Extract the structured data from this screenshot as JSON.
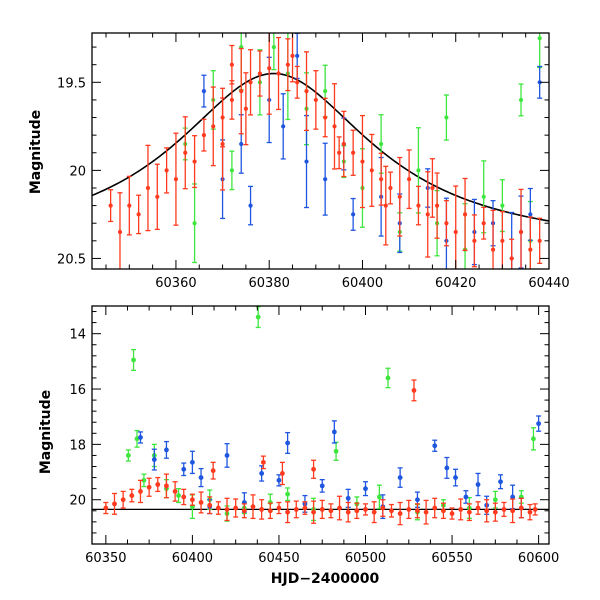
{
  "figure": {
    "x_axis_label": "HJD−2400000"
  },
  "colors": {
    "green": "#3ee63e",
    "blue": "#1f56e0",
    "red": "#ff3a1e",
    "model": "#000000"
  },
  "chart_data": [
    {
      "type": "scatter",
      "title": "",
      "xlabel": "",
      "ylabel": "Magnitude",
      "xlim": [
        60342,
        60440
      ],
      "ylim": [
        20.56,
        19.22
      ],
      "y_inverted": true,
      "x_ticks": [
        60360,
        60380,
        60400,
        60420,
        60440
      ],
      "y_ticks": [
        19.5,
        20,
        20.5
      ],
      "legend": "none",
      "grid": false,
      "model_curve": {
        "type": "lorentzian",
        "peak_x": 60381,
        "peak_mag": 19.45,
        "baseline_mag": 20.45,
        "width_days": 26
      },
      "series": [
        {
          "color": "red",
          "points": [
            [
              60346,
              20.2
            ],
            [
              60348,
              20.35
            ],
            [
              60350,
              20.2
            ],
            [
              60352,
              20.25
            ],
            [
              60354,
              20.1
            ],
            [
              60356,
              20.15
            ],
            [
              60358,
              20.0
            ],
            [
              60360,
              20.05
            ],
            [
              60362,
              19.9
            ],
            [
              60364,
              19.95
            ],
            [
              60366,
              19.8
            ],
            [
              60368,
              19.75
            ],
            [
              60370,
              19.7
            ],
            [
              60372,
              19.6
            ],
            [
              60374,
              19.55
            ],
            [
              60376,
              19.5
            ],
            [
              60378,
              19.45
            ],
            [
              60380,
              19.42
            ],
            [
              60382,
              19.45
            ],
            [
              60384,
              19.4
            ],
            [
              60386,
              19.5
            ],
            [
              60388,
              19.55
            ],
            [
              60390,
              19.6
            ],
            [
              60392,
              19.7
            ],
            [
              60394,
              19.75
            ],
            [
              60396,
              19.85
            ],
            [
              60398,
              19.9
            ],
            [
              60400,
              19.95
            ],
            [
              60402,
              20.0
            ],
            [
              60404,
              20.05
            ],
            [
              60406,
              20.1
            ],
            [
              60408,
              20.15
            ],
            [
              60410,
              20.05
            ],
            [
              60412,
              20.2
            ],
            [
              60414,
              20.25
            ],
            [
              60416,
              20.2
            ],
            [
              60418,
              20.3
            ],
            [
              60420,
              20.35
            ],
            [
              60422,
              20.25
            ],
            [
              60424,
              20.4
            ],
            [
              60426,
              20.3
            ],
            [
              60428,
              20.45
            ],
            [
              60430,
              20.4
            ],
            [
              60432,
              20.5
            ],
            [
              60434,
              20.35
            ],
            [
              60436,
              20.45
            ],
            [
              60438,
              20.4
            ],
            [
              60370,
              19.85
            ],
            [
              60375,
              19.65
            ],
            [
              60385,
              19.35
            ],
            [
              60395,
              19.9
            ],
            [
              60405,
              20.2
            ],
            [
              60415,
              20.1
            ],
            [
              60372,
              19.4
            ]
          ]
        },
        {
          "color": "green",
          "points": [
            [
              60362,
              19.85
            ],
            [
              60364,
              20.3
            ],
            [
              60368,
              19.6
            ],
            [
              60372,
              20.0
            ],
            [
              60374,
              19.3
            ],
            [
              60378,
              19.5
            ],
            [
              60381,
              19.3
            ],
            [
              60384,
              19.45
            ],
            [
              60388,
              19.65
            ],
            [
              60392,
              19.55
            ],
            [
              60396,
              19.95
            ],
            [
              60400,
              20.1
            ],
            [
              60404,
              19.85
            ],
            [
              60408,
              20.35
            ],
            [
              60412,
              20.0
            ],
            [
              60416,
              20.3
            ],
            [
              60418,
              19.7
            ],
            [
              60422,
              20.45
            ],
            [
              60426,
              20.15
            ],
            [
              60430,
              20.2
            ],
            [
              60434,
              19.6
            ],
            [
              60436,
              20.4
            ],
            [
              60438,
              19.25
            ]
          ]
        },
        {
          "color": "blue",
          "points": [
            [
              60366,
              19.55
            ],
            [
              60370,
              20.05
            ],
            [
              60374,
              19.85
            ],
            [
              60376,
              20.2
            ],
            [
              60380,
              19.6
            ],
            [
              60383,
              19.75
            ],
            [
              60386,
              19.35
            ],
            [
              60388,
              19.95
            ],
            [
              60392,
              20.05
            ],
            [
              60396,
              19.85
            ],
            [
              60398,
              20.25
            ],
            [
              60404,
              20.15
            ],
            [
              60408,
              20.3
            ],
            [
              60414,
              20.1
            ],
            [
              60418,
              20.4
            ],
            [
              60424,
              20.35
            ],
            [
              60428,
              20.3
            ],
            [
              60432,
              20.5
            ],
            [
              60434,
              20.35
            ],
            [
              60436,
              20.25
            ],
            [
              60438,
              19.5
            ]
          ]
        }
      ]
    },
    {
      "type": "scatter",
      "title": "",
      "xlabel": "HJD−2400000",
      "ylabel": "Magnitude",
      "xlim": [
        60342,
        60606
      ],
      "ylim": [
        21.6,
        13.0
      ],
      "y_inverted": true,
      "x_ticks": [
        60350,
        60400,
        60450,
        60500,
        60550,
        60600
      ],
      "y_ticks": [
        14,
        16,
        18,
        20
      ],
      "legend": "none",
      "grid": false,
      "baseline_mag": 20.35,
      "series": [
        {
          "color": "red",
          "points": [
            [
              60350,
              20.3
            ],
            [
              60355,
              20.15
            ],
            [
              60360,
              20.0
            ],
            [
              60365,
              19.85
            ],
            [
              60370,
              19.7
            ],
            [
              60375,
              19.55
            ],
            [
              60380,
              19.45
            ],
            [
              60385,
              19.5
            ],
            [
              60390,
              19.7
            ],
            [
              60395,
              19.9
            ],
            [
              60400,
              20.0
            ],
            [
              60405,
              20.1
            ],
            [
              60410,
              20.2
            ],
            [
              60415,
              20.3
            ],
            [
              60420,
              20.35
            ],
            [
              60425,
              20.3
            ],
            [
              60430,
              20.4
            ],
            [
              60435,
              20.25
            ],
            [
              60440,
              20.35
            ],
            [
              60445,
              20.4
            ],
            [
              60450,
              20.3
            ],
            [
              60455,
              20.45
            ],
            [
              60460,
              20.35
            ],
            [
              60465,
              20.3
            ],
            [
              60470,
              20.45
            ],
            [
              60475,
              20.35
            ],
            [
              60480,
              20.4
            ],
            [
              60485,
              20.3
            ],
            [
              60490,
              20.45
            ],
            [
              60495,
              20.4
            ],
            [
              60500,
              20.35
            ],
            [
              60505,
              20.45
            ],
            [
              60510,
              20.3
            ],
            [
              60515,
              20.4
            ],
            [
              60520,
              20.5
            ],
            [
              60525,
              20.35
            ],
            [
              60530,
              20.4
            ],
            [
              60535,
              20.45
            ],
            [
              60540,
              20.3
            ],
            [
              60545,
              20.4
            ],
            [
              60550,
              20.5
            ],
            [
              60555,
              20.35
            ],
            [
              60560,
              20.45
            ],
            [
              60565,
              20.3
            ],
            [
              60570,
              20.4
            ],
            [
              60575,
              20.45
            ],
            [
              60580,
              20.35
            ],
            [
              60585,
              20.4
            ],
            [
              60590,
              20.3
            ],
            [
              60595,
              20.45
            ],
            [
              60598,
              20.35
            ],
            [
              60528,
              16.05
            ],
            [
              60412,
              18.95
            ],
            [
              60441,
              18.65
            ],
            [
              60452,
              19.05
            ],
            [
              60470,
              18.9
            ]
          ]
        },
        {
          "color": "green",
          "points": [
            [
              60363,
              18.4
            ],
            [
              60366,
              14.95
            ],
            [
              60368,
              17.8
            ],
            [
              60372,
              19.3
            ],
            [
              60378,
              18.4
            ],
            [
              60385,
              19.6
            ],
            [
              60392,
              19.85
            ],
            [
              60400,
              20.25
            ],
            [
              60410,
              20.0
            ],
            [
              60420,
              20.5
            ],
            [
              60430,
              20.3
            ],
            [
              60438,
              13.4
            ],
            [
              60445,
              20.1
            ],
            [
              60455,
              19.8
            ],
            [
              60470,
              20.35
            ],
            [
              60483,
              18.25
            ],
            [
              60495,
              20.15
            ],
            [
              60508,
              19.9
            ],
            [
              60513,
              15.6
            ],
            [
              60530,
              20.45
            ],
            [
              60545,
              20.2
            ],
            [
              60560,
              20.3
            ],
            [
              60575,
              20.0
            ],
            [
              60590,
              19.9
            ],
            [
              60597,
              17.8
            ]
          ]
        },
        {
          "color": "blue",
          "points": [
            [
              60370,
              17.75
            ],
            [
              60378,
              18.55
            ],
            [
              60385,
              18.2
            ],
            [
              60395,
              18.9
            ],
            [
              60400,
              18.65
            ],
            [
              60405,
              19.2
            ],
            [
              60410,
              20.25
            ],
            [
              60420,
              18.4
            ],
            [
              60430,
              20.1
            ],
            [
              60440,
              19.05
            ],
            [
              60450,
              19.3
            ],
            [
              60455,
              17.95
            ],
            [
              60465,
              20.15
            ],
            [
              60475,
              19.5
            ],
            [
              60482,
              17.55
            ],
            [
              60490,
              19.95
            ],
            [
              60500,
              19.6
            ],
            [
              60510,
              20.25
            ],
            [
              60520,
              19.2
            ],
            [
              60530,
              20.0
            ],
            [
              60540,
              18.05
            ],
            [
              60547,
              18.85
            ],
            [
              60552,
              19.2
            ],
            [
              60558,
              19.9
            ],
            [
              60565,
              19.45
            ],
            [
              60570,
              20.2
            ],
            [
              60578,
              19.35
            ],
            [
              60585,
              19.9
            ],
            [
              60590,
              20.3
            ],
            [
              60600,
              17.25
            ]
          ]
        }
      ]
    }
  ]
}
